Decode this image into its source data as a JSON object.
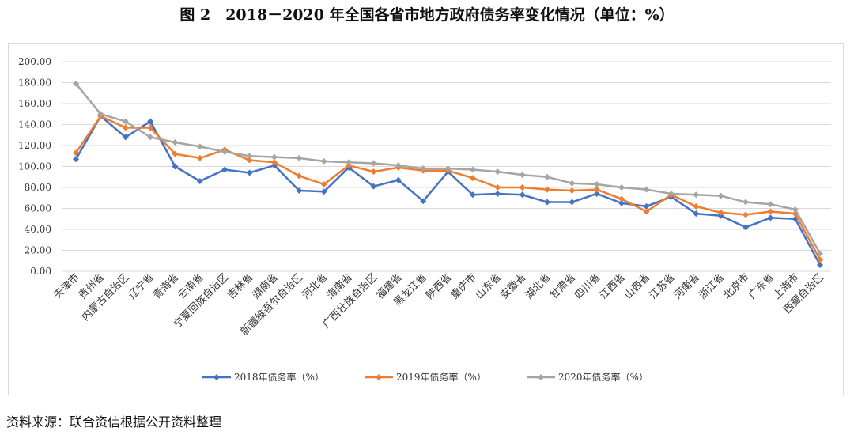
{
  "title": "图 2　2018－2020 年全国各省市地方政府债务率变化情况（单位：%）",
  "source": "资料来源：联合资信根据公开资料整理",
  "chart_data": {
    "type": "line",
    "title": "",
    "xlabel": "",
    "ylabel": "",
    "ylim": [
      0,
      200
    ],
    "yticks": [
      "0.00",
      "20.00",
      "40.00",
      "60.00",
      "80.00",
      "100.00",
      "120.00",
      "140.00",
      "160.00",
      "180.00",
      "200.00"
    ],
    "grid": true,
    "legend_position": "bottom",
    "categories": [
      "天津市",
      "贵州省",
      "内蒙古自治区",
      "辽宁省",
      "青海省",
      "云南省",
      "宁夏回族自治区",
      "吉林省",
      "湖南省",
      "新疆维吾尔自治区",
      "河北省",
      "海南省",
      "广西壮族自治区",
      "福建省",
      "黑龙江省",
      "陕西省",
      "重庆市",
      "山东省",
      "安徽省",
      "湖北省",
      "甘肃省",
      "四川省",
      "江西省",
      "山西省",
      "江苏省",
      "河南省",
      "浙江省",
      "北京市",
      "广东省",
      "上海市",
      "西藏自治区"
    ],
    "series": [
      {
        "name": "2018年债务率（%）",
        "color": "#4472c4",
        "values": [
          107,
          148,
          128,
          143,
          100,
          86,
          97,
          94,
          101,
          77,
          76,
          99,
          81,
          87,
          67,
          95,
          73,
          74,
          73,
          66,
          66,
          74,
          65,
          62,
          71,
          55,
          53,
          42,
          51,
          50,
          6
        ]
      },
      {
        "name": "2019年债务率（%）",
        "color": "#ed7d31",
        "values": [
          113,
          148,
          137,
          137,
          112,
          108,
          116,
          106,
          104,
          91,
          83,
          101,
          95,
          99,
          96,
          96,
          89,
          80,
          80,
          78,
          77,
          78,
          69,
          57,
          73,
          62,
          56,
          54,
          57,
          55,
          11
        ]
      },
      {
        "name": "2020年债务率（%）",
        "color": "#a5a5a5",
        "values": [
          179,
          150,
          143,
          128,
          123,
          119,
          114,
          110,
          109,
          108,
          105,
          104,
          103,
          101,
          98,
          98,
          97,
          95,
          92,
          90,
          84,
          83,
          80,
          78,
          74,
          73,
          72,
          66,
          64,
          59,
          17
        ]
      }
    ]
  }
}
